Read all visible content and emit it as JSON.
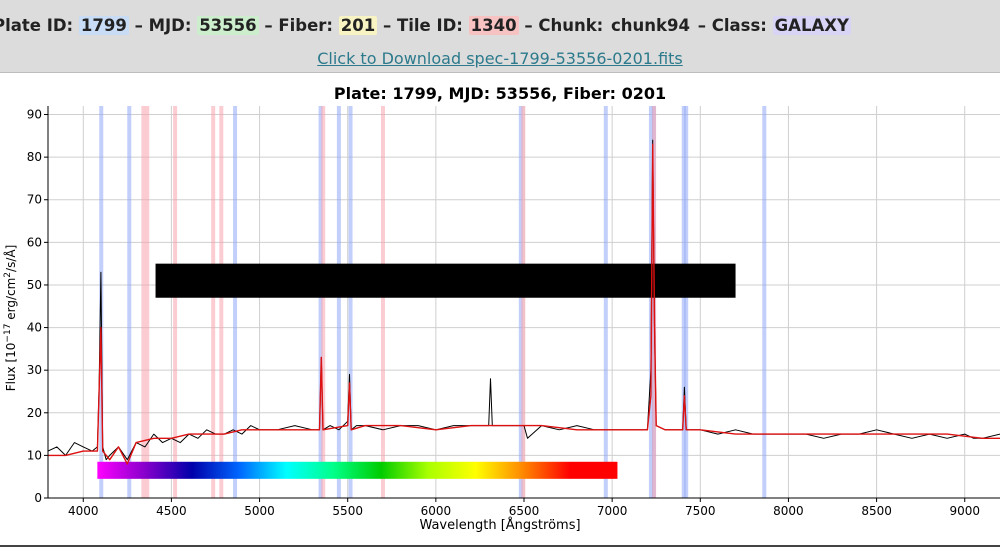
{
  "header": {
    "plate_label": "Plate ID:",
    "plate_value": "1799",
    "mjd_label": "MJD:",
    "mjd_value": "53556",
    "fiber_label": "Fiber:",
    "fiber_value": "201",
    "tile_label": "Tile ID:",
    "tile_value": "1340",
    "chunk_label": "Chunk:",
    "chunk_value": "chunk94",
    "class_label": "Class:",
    "class_value": "GALAXY",
    "separator": "–",
    "download_text": "Click to Download spec-1799-53556-0201.fits",
    "highlight_colors": {
      "plate": "#c8dcf6",
      "mjd": "#cdeecd",
      "fiber": "#f8f3c2",
      "tile": "#f6c2c2",
      "class": "#d8d4f6"
    },
    "link_color": "#2c7a8c"
  },
  "chart_data": {
    "type": "line",
    "title": "Plate: 1799, MJD: 53556, Fiber: 0201",
    "xlabel": "Wavelength [Ångströms]",
    "ylabel_main": "Flux [10",
    "ylabel_exp": "−17",
    "ylabel_rest": " erg/cm",
    "ylabel_sq": "2",
    "ylabel_tail": "/s/Å]",
    "xlim": [
      3800,
      9200
    ],
    "ylim": [
      0,
      92
    ],
    "xticks": [
      4000,
      4500,
      5000,
      5500,
      6000,
      6500,
      7000,
      7500,
      8000,
      8500,
      9000
    ],
    "yticks": [
      0,
      10,
      20,
      30,
      40,
      50,
      60,
      70,
      80,
      90
    ],
    "grid": true,
    "series": [
      {
        "color": "#000000",
        "x": [
          3800,
          3850,
          3900,
          3950,
          4000,
          4050,
          4080,
          4090,
          4100,
          4110,
          4130,
          4150,
          4200,
          4250,
          4300,
          4350,
          4400,
          4450,
          4500,
          4550,
          4600,
          4650,
          4700,
          4750,
          4800,
          4850,
          4900,
          4950,
          5000,
          5100,
          5200,
          5300,
          5340,
          5350,
          5360,
          5400,
          5450,
          5500,
          5510,
          5520,
          5550,
          5600,
          5700,
          5800,
          5900,
          6000,
          6100,
          6200,
          6300,
          6310,
          6320,
          6400,
          6500,
          6520,
          6600,
          6700,
          6800,
          6900,
          7000,
          7100,
          7200,
          7220,
          7230,
          7240,
          7250,
          7300,
          7400,
          7410,
          7420,
          7500,
          7600,
          7700,
          7800,
          7900,
          8000,
          8100,
          8200,
          8300,
          8400,
          8500,
          8600,
          8700,
          8800,
          8900,
          9000,
          9050,
          9100,
          9200
        ],
        "y": [
          11,
          12,
          10,
          13,
          12,
          11,
          12,
          26,
          53,
          12,
          9,
          10,
          12,
          9,
          13,
          12,
          15,
          13,
          14,
          13,
          15,
          14,
          16,
          15,
          15,
          16,
          15,
          17,
          16,
          16,
          17,
          16,
          16,
          33,
          16,
          17,
          16,
          18,
          29,
          16,
          17,
          17,
          16,
          17,
          17,
          16,
          17,
          17,
          17,
          28,
          17,
          17,
          17,
          14,
          17,
          16,
          17,
          16,
          16,
          16,
          16,
          30,
          84,
          40,
          17,
          16,
          16,
          26,
          16,
          16,
          15,
          16,
          15,
          15,
          15,
          15,
          14,
          15,
          15,
          16,
          15,
          14,
          15,
          14,
          15,
          14,
          14,
          15
        ]
      },
      {
        "color": "#dd1111",
        "x": [
          3800,
          3900,
          4000,
          4080,
          4100,
          4110,
          4150,
          4200,
          4250,
          4300,
          4400,
          4500,
          4600,
          4700,
          4800,
          4900,
          5000,
          5200,
          5340,
          5350,
          5360,
          5500,
          5510,
          5520,
          5600,
          5800,
          6000,
          6200,
          6400,
          6500,
          6600,
          6800,
          7000,
          7200,
          7220,
          7230,
          7240,
          7250,
          7300,
          7400,
          7410,
          7420,
          7500,
          7700,
          7900,
          8100,
          8300,
          8500,
          8700,
          8900,
          9100,
          9200
        ],
        "y": [
          10,
          10,
          11,
          11,
          40,
          11,
          9,
          12,
          8,
          13,
          14,
          14,
          15,
          15,
          15,
          16,
          16,
          16,
          16,
          33,
          16,
          17,
          27,
          16,
          17,
          17,
          16,
          17,
          17,
          17,
          17,
          16,
          16,
          16,
          24,
          83,
          41,
          17,
          16,
          16,
          24,
          16,
          16,
          15,
          15,
          15,
          15,
          15,
          15,
          15,
          14,
          14
        ]
      }
    ],
    "emission_lines_blue": [
      4102,
      4261,
      4861,
      5346,
      5450,
      5516,
      6482,
      6964,
      7220,
      7237,
      7406,
      7420,
      7863
    ],
    "emission_lines_pink": [
      4341,
      4363,
      4521,
      4737,
      4783,
      5361,
      5700,
      6496,
      7238
    ],
    "bands": [
      {
        "x0": 4410,
        "x1": 7700,
        "y0": 47,
        "y1": 55,
        "color": "#000000"
      },
      {
        "x0": 4080,
        "x1": 7030,
        "y0": 4.5,
        "y1": 8.5,
        "color": "spectrum"
      }
    ],
    "gradient_stops": [
      "#ff00ff",
      "#8800cc",
      "#0000aa",
      "#0066ff",
      "#00ffff",
      "#00ff88",
      "#00cc00",
      "#aaff00",
      "#ffff00",
      "#ff8800",
      "#ff0000",
      "#ff0000"
    ]
  }
}
